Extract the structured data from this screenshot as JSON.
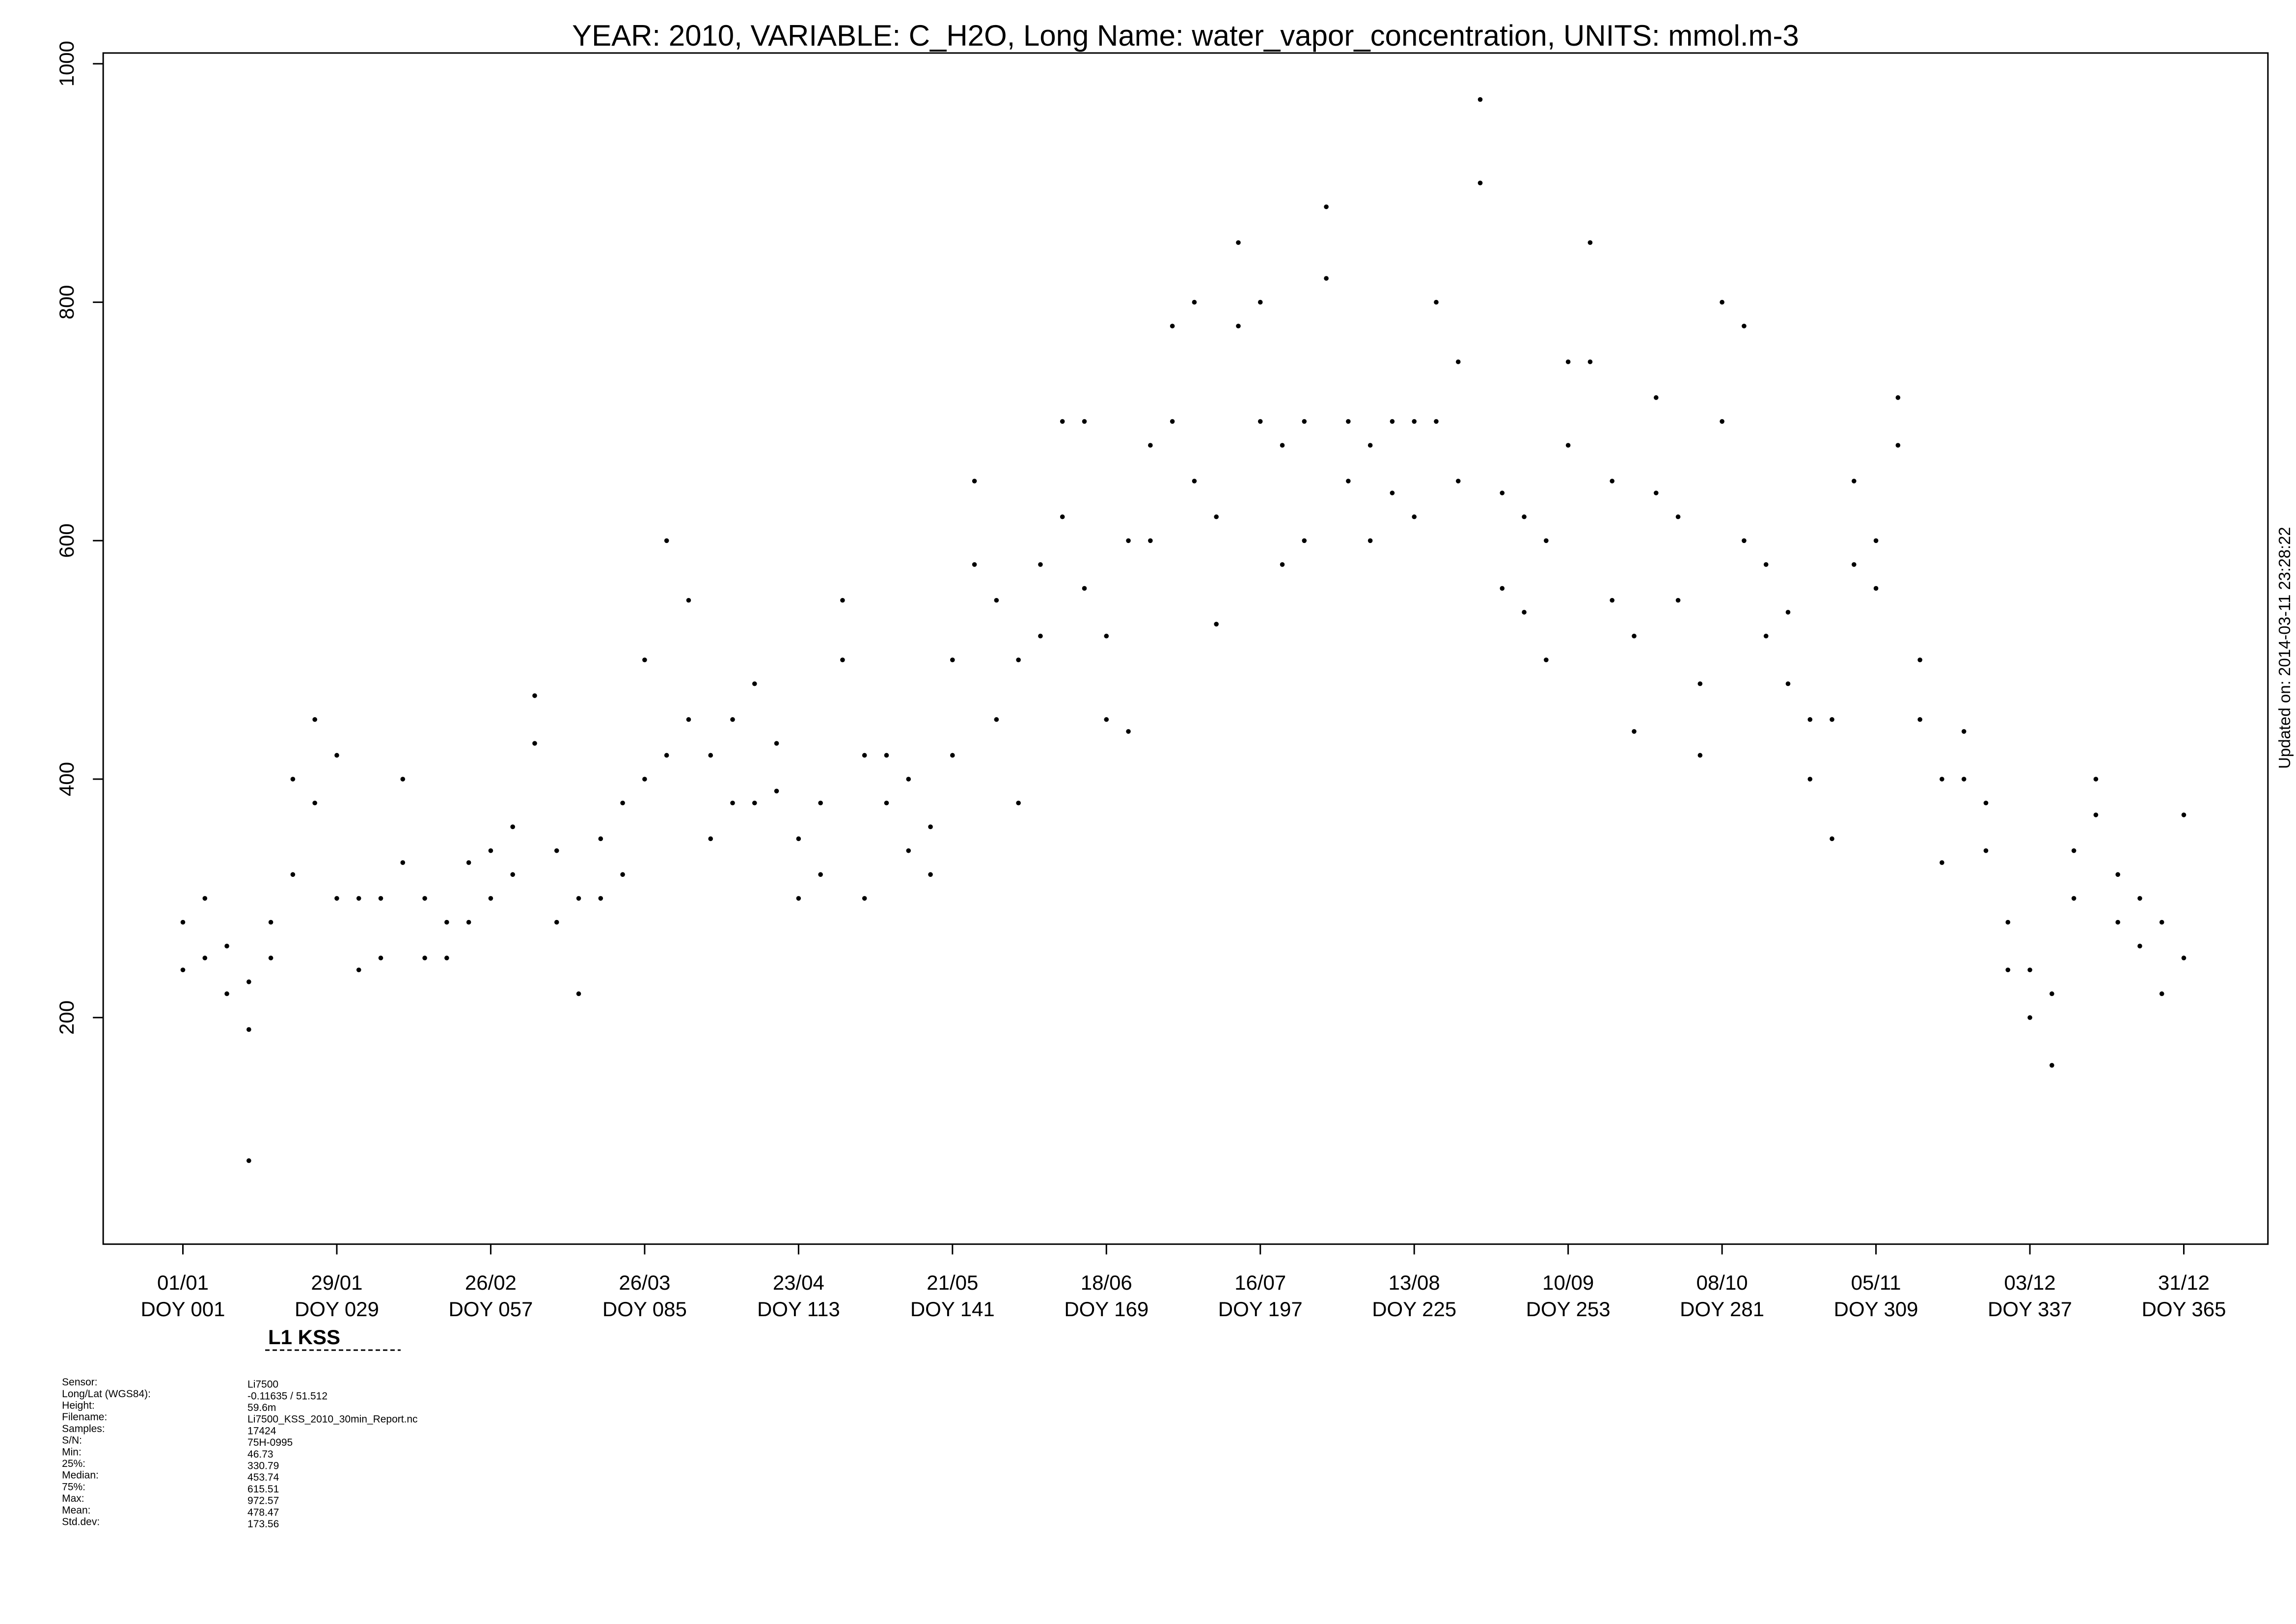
{
  "chart_data": {
    "type": "scatter",
    "title": "YEAR: 2010, VARIABLE: C_H2O, Long Name: water_vapor_concentration, UNITS: mmol.m-3",
    "side_note": "Updated on: 2014-03-11 23:28:22",
    "subtitle": "L1 KSS",
    "color": "#000000",
    "xlim": [
      -13.5,
      380.3
    ],
    "ylim": [
      10,
      1009
    ],
    "yticks": [
      200,
      400,
      600,
      800,
      1000
    ],
    "xticks": [
      {
        "value": 1,
        "label": "01/01"
      },
      {
        "value": 29,
        "label": "29/01"
      },
      {
        "value": 57,
        "label": "26/02"
      },
      {
        "value": 85,
        "label": "26/03"
      },
      {
        "value": 113,
        "label": "23/04"
      },
      {
        "value": 141,
        "label": "21/05"
      },
      {
        "value": 169,
        "label": "18/06"
      },
      {
        "value": 197,
        "label": "16/07"
      },
      {
        "value": 225,
        "label": "13/08"
      },
      {
        "value": 253,
        "label": "10/09"
      },
      {
        "value": 281,
        "label": "08/10"
      },
      {
        "value": 309,
        "label": "05/11"
      },
      {
        "value": 337,
        "label": "03/12"
      },
      {
        "value": 365,
        "label": "31/12"
      }
    ],
    "xtick_sublabels": [
      "DOY 001",
      "DOY 029",
      "DOY 057",
      "DOY 085",
      "DOY 113",
      "DOY 141",
      "DOY 169",
      "DOY 197",
      "DOY 225",
      "DOY 253",
      "DOY 281",
      "DOY 309",
      "DOY 337",
      "DOY 365"
    ],
    "x": [
      1,
      1,
      5,
      5,
      9,
      9,
      13,
      13,
      13,
      17,
      17,
      21,
      21,
      25,
      25,
      29,
      29,
      33,
      33,
      37,
      37,
      41,
      41,
      45,
      45,
      49,
      49,
      53,
      53,
      57,
      57,
      61,
      61,
      65,
      65,
      69,
      69,
      73,
      73,
      77,
      77,
      81,
      81,
      85,
      85,
      89,
      89,
      93,
      93,
      97,
      97,
      101,
      101,
      105,
      105,
      109,
      109,
      113,
      113,
      117,
      117,
      121,
      121,
      125,
      125,
      129,
      129,
      133,
      133,
      137,
      137,
      141,
      141,
      145,
      145,
      149,
      149,
      153,
      153,
      157,
      157,
      161,
      161,
      165,
      165,
      169,
      169,
      173,
      173,
      177,
      177,
      181,
      181,
      185,
      185,
      189,
      189,
      193,
      193,
      197,
      197,
      201,
      201,
      205,
      205,
      209,
      209,
      213,
      213,
      217,
      217,
      221,
      221,
      225,
      225,
      229,
      229,
      233,
      233,
      237,
      237,
      241,
      241,
      245,
      245,
      249,
      249,
      253,
      253,
      257,
      257,
      261,
      261,
      265,
      265,
      269,
      269,
      273,
      273,
      277,
      277,
      281,
      281,
      285,
      285,
      289,
      289,
      293,
      293,
      297,
      297,
      301,
      301,
      305,
      305,
      309,
      309,
      313,
      313,
      317,
      317,
      321,
      321,
      325,
      325,
      329,
      329,
      333,
      333,
      337,
      337,
      341,
      341,
      345,
      345,
      349,
      349,
      353,
      353,
      357,
      357,
      361,
      361,
      365,
      365
    ],
    "y": [
      240,
      280,
      250,
      300,
      220,
      260,
      190,
      230,
      80,
      250,
      280,
      320,
      400,
      380,
      450,
      300,
      420,
      240,
      300,
      250,
      300,
      330,
      400,
      250,
      300,
      250,
      280,
      280,
      330,
      300,
      340,
      320,
      360,
      430,
      470,
      280,
      340,
      220,
      300,
      300,
      350,
      320,
      380,
      400,
      500,
      420,
      600,
      450,
      550,
      350,
      420,
      380,
      450,
      380,
      480,
      390,
      430,
      300,
      350,
      320,
      380,
      500,
      550,
      300,
      420,
      380,
      420,
      340,
      400,
      320,
      360,
      420,
      500,
      580,
      650,
      450,
      550,
      380,
      500,
      520,
      580,
      620,
      700,
      560,
      700,
      450,
      520,
      440,
      600,
      600,
      680,
      700,
      780,
      650,
      800,
      530,
      620,
      780,
      850,
      700,
      800,
      580,
      680,
      600,
      700,
      820,
      880,
      650,
      700,
      600,
      680,
      640,
      700,
      620,
      700,
      700,
      800,
      650,
      750,
      900,
      970,
      560,
      640,
      540,
      620,
      500,
      600,
      680,
      750,
      750,
      850,
      550,
      650,
      440,
      520,
      640,
      720,
      550,
      620,
      420,
      480,
      700,
      800,
      600,
      780,
      520,
      580,
      480,
      540,
      400,
      450,
      350,
      450,
      580,
      650,
      560,
      600,
      680,
      720,
      450,
      500,
      330,
      400,
      400,
      440,
      340,
      380,
      240,
      280,
      200,
      240,
      160,
      220,
      300,
      340,
      370,
      400,
      280,
      320,
      260,
      300,
      220,
      280,
      250,
      370
    ]
  },
  "info": {
    "labels": [
      "Sensor:",
      "Long/Lat (WGS84):",
      "Height:",
      "Filename:",
      "Samples:",
      "S/N:",
      "Min:",
      "25%:",
      "Median:",
      "75%:",
      "Max:",
      "Mean:",
      "Std.dev:"
    ],
    "values": [
      "Li7500",
      "-0.11635 / 51.512",
      "59.6m",
      "Li7500_KSS_2010_30min_Report.nc",
      "17424",
      "75H-0995",
      "46.73",
      "330.79",
      "453.74",
      "615.51",
      "972.57",
      "478.47",
      "173.56"
    ]
  }
}
